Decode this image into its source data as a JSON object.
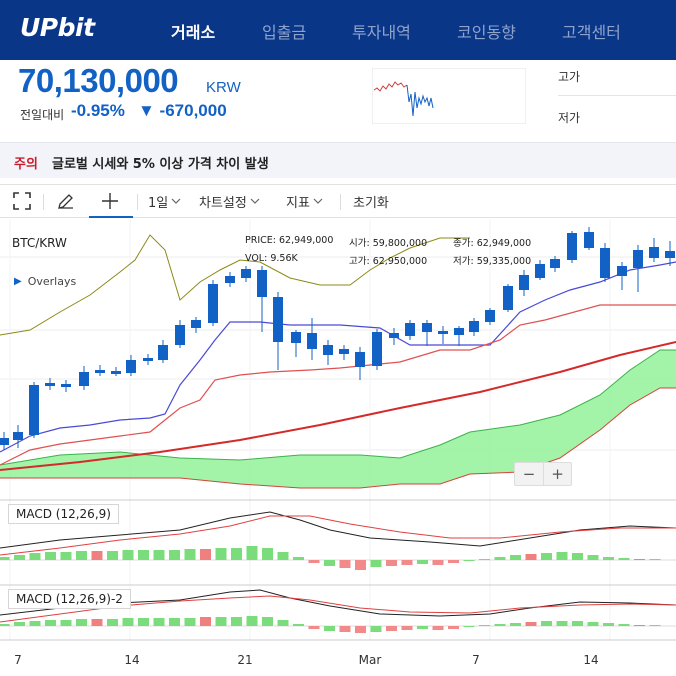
{
  "header": {
    "logo": "UPbit",
    "nav": [
      "거래소",
      "입출금",
      "투자내역",
      "코인동향",
      "고객센터"
    ]
  },
  "price": {
    "current": "70,130,000",
    "unit": "KRW",
    "prev_label": "전일대비",
    "change_rate": "-0.95%",
    "change_amount": "▼ -670,000",
    "high_label": "고가",
    "low_label": "저가"
  },
  "notice": {
    "tag": "주의",
    "text": "글로벌 시세와 5% 이상 가격 차이 발생"
  },
  "toolbar": {
    "interval": "1일",
    "chart_settings": "차트설정",
    "indicators": "지표",
    "reset": "초기화"
  },
  "chart": {
    "pair": "BTC/KRW",
    "overlays_label": "Overlays",
    "ohlc": {
      "price_label": "PRICE:",
      "price": "62,949,000",
      "open_label": "시가:",
      "open": "59,800,000",
      "close_label": "종가:",
      "close": "62,949,000",
      "vol_label": "VOL:",
      "vol": "9.56K",
      "high_label": "고가:",
      "high": "62,950,000",
      "low_label": "저가:",
      "low": "59,335,000"
    },
    "macd1_label": "MACD (12,26,9)",
    "macd2_label": "MACD (12,26,9)-2",
    "zoom_out": "−",
    "zoom_in": "+"
  },
  "chart_data": {
    "type": "line",
    "x_ticks": [
      "7",
      "14",
      "21",
      "Mar",
      "7",
      "14"
    ],
    "colors": {
      "up": "#c84a31",
      "down": "#1261c4",
      "cloud": "#99f2a0"
    }
  }
}
